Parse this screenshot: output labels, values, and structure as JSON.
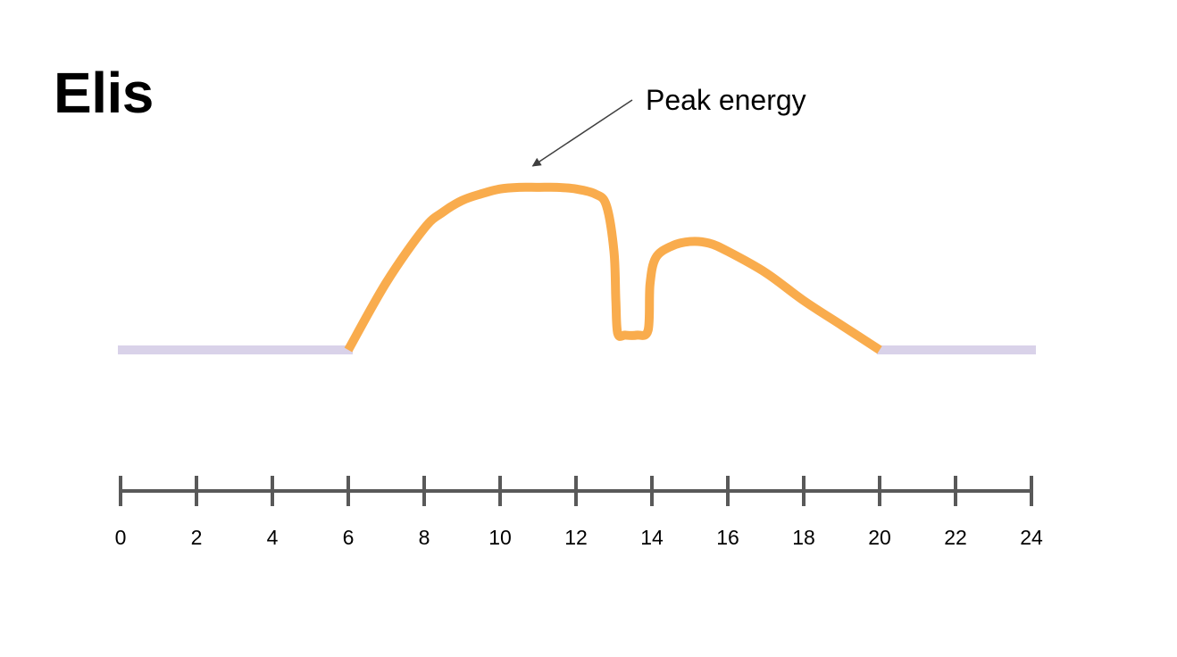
{
  "title": "Elis",
  "colors": {
    "energy_line": "#F9AC4D",
    "baseline": "#D9D2E9",
    "axis": "#595959",
    "annotation_arrow": "#3F3F3F"
  },
  "chart_data": {
    "type": "line",
    "title": "Elis",
    "xlabel": "",
    "ylabel": "",
    "xlim": [
      0,
      24
    ],
    "ylim": [
      0,
      1
    ],
    "x_ticks": [
      0,
      2,
      4,
      6,
      8,
      10,
      12,
      14,
      16,
      18,
      20,
      22,
      24
    ],
    "x_tick_labels": [
      "0",
      "2",
      "4",
      "6",
      "8",
      "10",
      "12",
      "14",
      "16",
      "18",
      "20",
      "22",
      "24"
    ],
    "grid": false,
    "legend": "none",
    "baseline_segments": [
      {
        "x": [
          0,
          6
        ],
        "y": [
          0,
          0
        ]
      },
      {
        "x": [
          20,
          24
        ],
        "y": [
          0,
          0
        ]
      }
    ],
    "series": [
      {
        "x": [
          6,
          7,
          8,
          8.5,
          9,
          9.5,
          10,
          10.5,
          11,
          11.5,
          12,
          12.5,
          12.8,
          13.0,
          13.05,
          13.1,
          13.3,
          13.6,
          13.9,
          13.95,
          14.1,
          14.5,
          15,
          15.5,
          16,
          17,
          18,
          19,
          20
        ],
        "y": [
          0,
          0.41,
          0.74,
          0.84,
          0.91,
          0.95,
          0.98,
          0.99,
          0.99,
          0.99,
          0.98,
          0.95,
          0.88,
          0.6,
          0.3,
          0.1,
          0.09,
          0.09,
          0.12,
          0.4,
          0.56,
          0.63,
          0.66,
          0.65,
          0.6,
          0.47,
          0.3,
          0.15,
          0
        ]
      }
    ],
    "annotations": [
      {
        "text": "Peak energy",
        "points_to_x": 11
      }
    ]
  }
}
